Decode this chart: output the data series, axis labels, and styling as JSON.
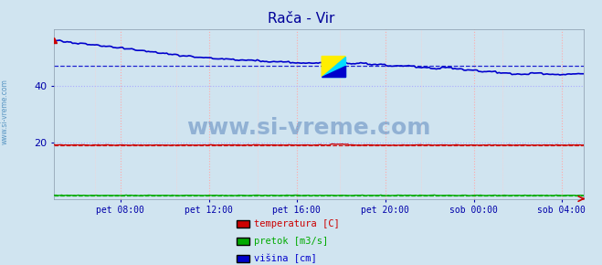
{
  "title": "Rača - Vir",
  "title_color": "#000099",
  "bg_color": "#d0e4f0",
  "plot_bg_color": "#d0e4f0",
  "ylim": [
    0,
    60
  ],
  "yticks": [
    20,
    40
  ],
  "xlabel_color": "#0000aa",
  "watermark": "www.si-vreme.com",
  "x_labels": [
    "pet 08:00",
    "pet 12:00",
    "pet 16:00",
    "pet 20:00",
    "sob 00:00",
    "sob 04:00"
  ],
  "x_positions": [
    0.125,
    0.292,
    0.458,
    0.625,
    0.792,
    0.958
  ],
  "legend_items": [
    {
      "label": "temperatura [C]",
      "color": "#cc0000"
    },
    {
      "label": "pretok [m3/s]",
      "color": "#00aa00"
    },
    {
      "label": "višina [cm]",
      "color": "#0000cc"
    }
  ],
  "temp_value": 19.0,
  "temp_avg": 19.0,
  "pretok_value": 1.2,
  "pretok_avg": 1.2,
  "visina_avg": 47.0,
  "n_points": 288,
  "sidebar_text": "www.si-vreme.com",
  "sidebar_color": "#4488bb"
}
